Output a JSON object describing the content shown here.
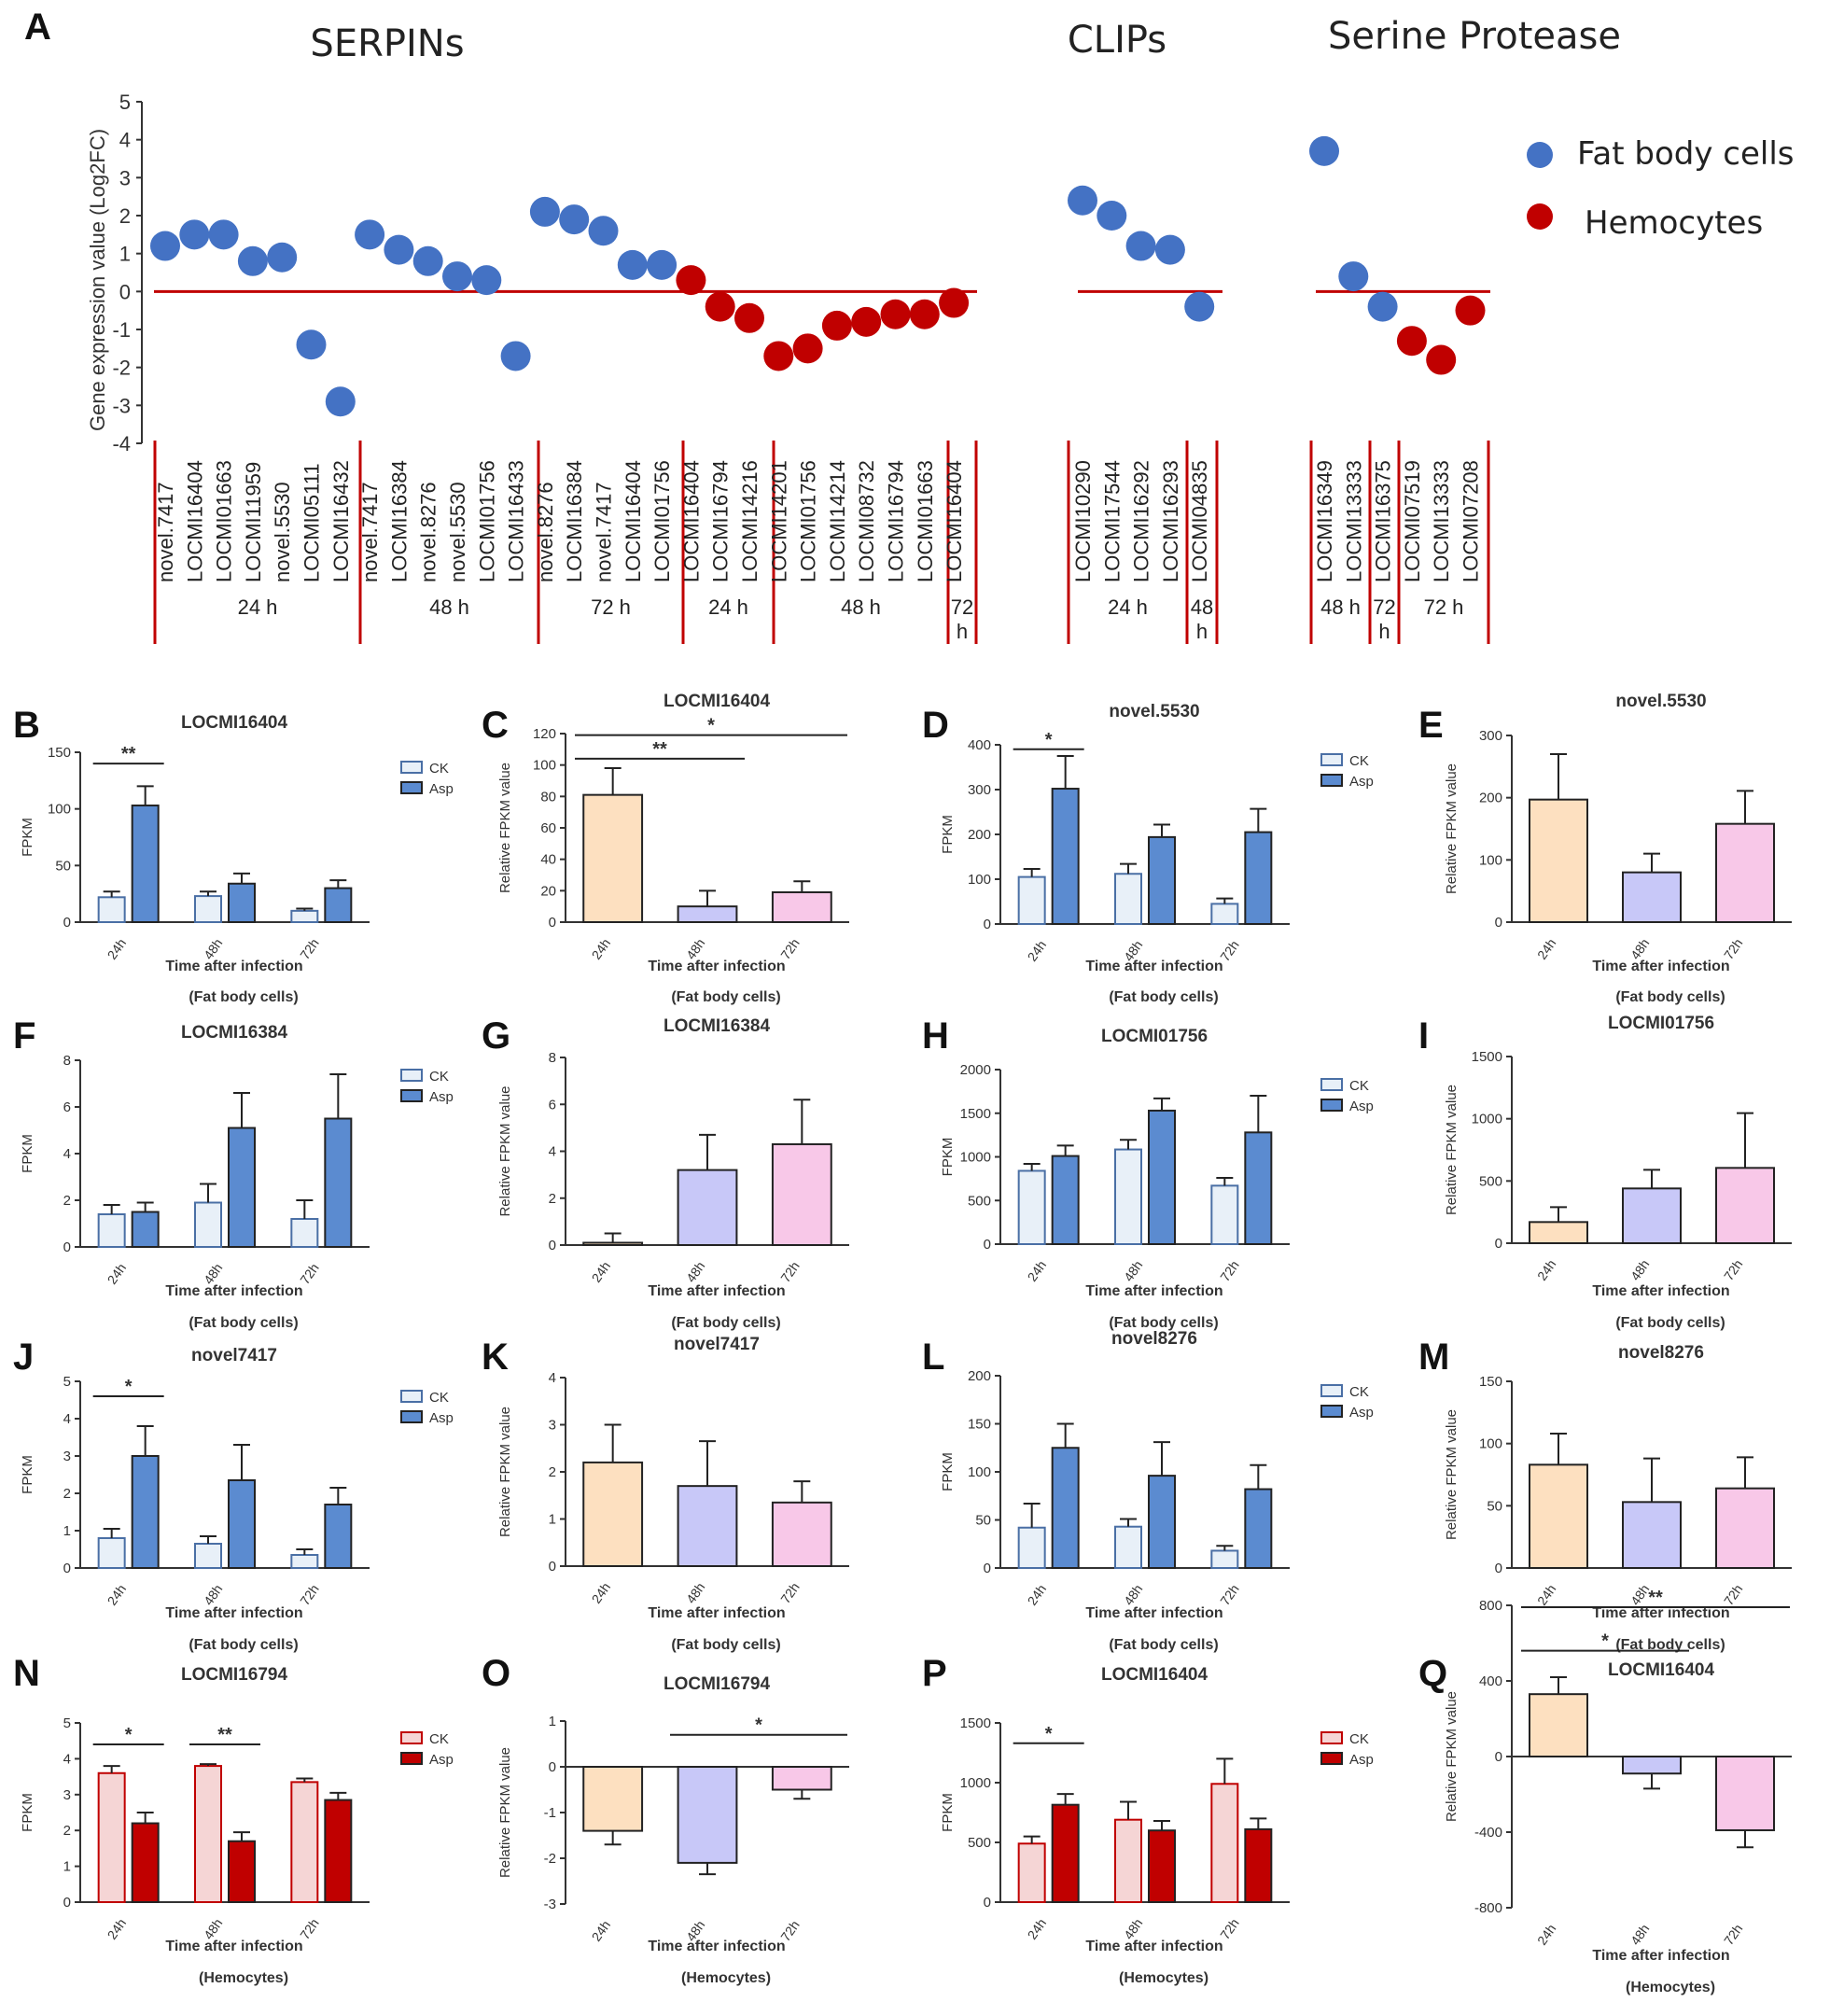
{
  "panel_a": {
    "label": "A",
    "section_titles": [
      "SERPINs",
      "CLIPs",
      "Serine Protease"
    ],
    "ylabel": "Gene expression value (Log2FC)",
    "ylim": [
      -4,
      5
    ],
    "yticks": [
      "5",
      "4",
      "3",
      "2",
      "1",
      "0",
      "-1",
      "-2",
      "-3",
      "-4"
    ],
    "legend": {
      "fat": {
        "label": "Fat body cells",
        "color": "#4472c4"
      },
      "hemo": {
        "label": "Hemocytes",
        "color": "#c00000"
      }
    },
    "groups": [
      {
        "label": "24 h",
        "genes": [
          "novel.7417",
          "LOCMI16404",
          "LOCMI01663",
          "LOCMI11959",
          "novel.5530",
          "LOCMI05111",
          "LOCMI16432"
        ],
        "values": [
          1.2,
          1.5,
          1.5,
          0.8,
          0.9,
          -1.4,
          -2.9
        ],
        "type": "fat"
      },
      {
        "label": "48 h",
        "genes": [
          "novel.7417",
          "LOCMI16384",
          "novel.8276",
          "novel.5530",
          "LOCMI01756",
          "LOCMI16433"
        ],
        "values": [
          1.5,
          1.1,
          0.8,
          0.4,
          0.3,
          -1.7
        ],
        "type": "fat"
      },
      {
        "label": "72 h",
        "genes": [
          "novel.8276",
          "LOCMI16384",
          "novel.7417",
          "LOCMI16404",
          "LOCMI01756"
        ],
        "values": [
          2.1,
          1.9,
          1.6,
          0.7,
          0.7
        ],
        "type": "fat"
      },
      {
        "label": "24 h",
        "genes": [
          "LOCMI16404",
          "LOCMI16794",
          "LOCMI14216"
        ],
        "values": [
          0.3,
          -0.4,
          -0.7
        ],
        "type": "hemo"
      },
      {
        "label": "48 h",
        "genes": [
          "LOCMI14201",
          "LOCMI01756",
          "LOCMI14214",
          "LOCMI08732",
          "LOCMI16794",
          "LOCMI01663"
        ],
        "values": [
          -1.7,
          -1.5,
          -0.9,
          -0.8,
          -0.6,
          -0.6
        ],
        "type": "hemo"
      },
      {
        "label": "72 h",
        "genes": [
          "LOCMI16404"
        ],
        "values": [
          -0.3
        ],
        "type": "hemo"
      },
      {
        "label": "24 h",
        "genes": [
          "LOCMI10290",
          "LOCMI17544",
          "LOCMI16292",
          "LOCMI16293"
        ],
        "values": [
          2.4,
          2.0,
          1.2,
          1.1
        ],
        "type": "fat"
      },
      {
        "label": "48 h",
        "genes": [
          "LOCMI04835"
        ],
        "values": [
          -0.4
        ],
        "type": "fat"
      },
      {
        "label": "48 h",
        "genes": [
          "LOCMI16349",
          "LOCMI13333"
        ],
        "values": [
          3.7,
          0.4
        ],
        "type": "fat"
      },
      {
        "label": "72 h",
        "genes": [
          "LOCMI16375"
        ],
        "values": [
          -0.4
        ],
        "type": "fat"
      },
      {
        "label": "72 h",
        "genes": [
          "LOCMI07519",
          "LOCMI13333",
          "LOCMI07208"
        ],
        "values": [
          -1.3,
          -1.8,
          -0.5
        ],
        "type": "hemo"
      }
    ]
  },
  "colors": {
    "ck_fill": "#e8f0f8",
    "ck_stroke": "#4a6fa5",
    "asp_fat": "#5b8bd0",
    "ck_hemo_fill": "#f5d5d5",
    "asp_hemo": "#c00000",
    "rel_24": "#fde0c0",
    "rel_48": "#c8c8f8",
    "rel_72": "#f8c8e8",
    "zero_line": "#c00000"
  },
  "common": {
    "time_label": "Time after infection",
    "fat_caption": "(Fat body cells)",
    "hemo_caption": "(Hemocytes)",
    "categories": [
      "24h",
      "48h",
      "72h"
    ],
    "fpkm_label": "FPKM",
    "rel_label": "Relative FPKM value",
    "legend_ck": "CK",
    "legend_asp": "Asp"
  },
  "chart_data": [
    {
      "label": "B",
      "title": "LOCMI16404",
      "type": "bar",
      "kind": "grouped",
      "cell": "fat",
      "ylim": [
        0,
        150
      ],
      "yticks": [
        0,
        50,
        100,
        150
      ],
      "categories": [
        "24h",
        "48h",
        "72h"
      ],
      "series": [
        {
          "name": "CK",
          "values": [
            22,
            23,
            10
          ],
          "err": [
            5,
            4,
            2
          ]
        },
        {
          "name": "Asp",
          "values": [
            103,
            34,
            30
          ],
          "err": [
            17,
            9,
            7
          ]
        }
      ],
      "sig": [
        {
          "from": 0,
          "to": 0,
          "text": "**",
          "y": 140
        }
      ]
    },
    {
      "label": "C",
      "title": "LOCMI16404",
      "type": "bar",
      "kind": "relative",
      "cell": "fat",
      "ylim": [
        0,
        120
      ],
      "yticks": [
        0,
        20,
        40,
        60,
        80,
        100,
        120
      ],
      "categories": [
        "24h",
        "48h",
        "72h"
      ],
      "values": [
        81,
        10,
        19
      ],
      "err": [
        17,
        10,
        7
      ],
      "sig": [
        {
          "from": 0,
          "to": 1,
          "text": "**",
          "y": 104
        },
        {
          "from": 0,
          "to": 2,
          "text": "*",
          "y": 119
        }
      ]
    },
    {
      "label": "D",
      "title": "novel.5530",
      "type": "bar",
      "kind": "grouped",
      "cell": "fat",
      "ylim": [
        0,
        400
      ],
      "yticks": [
        0,
        100,
        200,
        300,
        400
      ],
      "categories": [
        "24h",
        "48h",
        "72h"
      ],
      "series": [
        {
          "name": "CK",
          "values": [
            105,
            112,
            45
          ],
          "err": [
            18,
            22,
            12
          ]
        },
        {
          "name": "Asp",
          "values": [
            302,
            194,
            205
          ],
          "err": [
            73,
            28,
            52
          ]
        }
      ],
      "sig": [
        {
          "from": 0,
          "to": 0,
          "text": "*",
          "y": 390
        }
      ]
    },
    {
      "label": "E",
      "title": "novel.5530",
      "type": "bar",
      "kind": "relative",
      "cell": "fat",
      "ylim": [
        0,
        300
      ],
      "yticks": [
        0,
        100,
        200,
        300
      ],
      "categories": [
        "24h",
        "48h",
        "72h"
      ],
      "values": [
        197,
        80,
        158
      ],
      "err": [
        73,
        30,
        53
      ],
      "sig": []
    },
    {
      "label": "F",
      "title": "LOCMI16384",
      "type": "bar",
      "kind": "grouped",
      "cell": "fat",
      "ylim": [
        0,
        8
      ],
      "yticks": [
        0,
        2,
        4,
        6,
        8
      ],
      "categories": [
        "24h",
        "48h",
        "72h"
      ],
      "series": [
        {
          "name": "CK",
          "values": [
            1.4,
            1.9,
            1.2
          ],
          "err": [
            0.4,
            0.8,
            0.8
          ]
        },
        {
          "name": "Asp",
          "values": [
            1.5,
            5.1,
            5.5
          ],
          "err": [
            0.4,
            1.5,
            1.9
          ]
        }
      ],
      "sig": []
    },
    {
      "label": "G",
      "title": "LOCMI16384",
      "type": "bar",
      "kind": "relative",
      "cell": "fat",
      "ylim": [
        0,
        8
      ],
      "yticks": [
        0,
        2,
        4,
        6,
        8
      ],
      "categories": [
        "24h",
        "48h",
        "72h"
      ],
      "values": [
        0.1,
        3.2,
        4.3
      ],
      "err": [
        0.4,
        1.5,
        1.9
      ],
      "sig": []
    },
    {
      "label": "H",
      "title": "LOCMI01756",
      "type": "bar",
      "kind": "grouped",
      "cell": "fat",
      "ylim": [
        0,
        2000
      ],
      "yticks": [
        0,
        500,
        1000,
        1500,
        2000
      ],
      "categories": [
        "24h",
        "48h",
        "72h"
      ],
      "series": [
        {
          "name": "CK",
          "values": [
            840,
            1085,
            670
          ],
          "err": [
            80,
            110,
            90
          ]
        },
        {
          "name": "Asp",
          "values": [
            1010,
            1530,
            1280
          ],
          "err": [
            120,
            140,
            420
          ]
        }
      ],
      "sig": []
    },
    {
      "label": "I",
      "title": "LOCMI01756",
      "type": "bar",
      "kind": "relative",
      "cell": "fat",
      "ylim": [
        0,
        1500
      ],
      "yticks": [
        0,
        500,
        1000,
        1500
      ],
      "categories": [
        "24h",
        "48h",
        "72h"
      ],
      "values": [
        170,
        440,
        605
      ],
      "err": [
        120,
        150,
        440
      ],
      "sig": []
    },
    {
      "label": "J",
      "title": "novel7417",
      "type": "bar",
      "kind": "grouped",
      "cell": "fat",
      "ylim": [
        0,
        5
      ],
      "yticks": [
        0,
        1,
        2,
        3,
        4,
        5
      ],
      "categories": [
        "24h",
        "48h",
        "72h"
      ],
      "series": [
        {
          "name": "CK",
          "values": [
            0.8,
            0.65,
            0.35
          ],
          "err": [
            0.25,
            0.2,
            0.15
          ]
        },
        {
          "name": "Asp",
          "values": [
            3.0,
            2.35,
            1.7
          ],
          "err": [
            0.8,
            0.95,
            0.45
          ]
        }
      ],
      "sig": [
        {
          "from": 0,
          "to": 0,
          "text": "*",
          "y": 4.6
        }
      ]
    },
    {
      "label": "K",
      "title": "novel7417",
      "type": "bar",
      "kind": "relative",
      "cell": "fat",
      "ylim": [
        0,
        4
      ],
      "yticks": [
        0,
        1,
        2,
        3,
        4
      ],
      "categories": [
        "24h",
        "48h",
        "72h"
      ],
      "values": [
        2.2,
        1.7,
        1.35
      ],
      "err": [
        0.8,
        0.95,
        0.45
      ],
      "sig": []
    },
    {
      "label": "L",
      "title": "novel8276",
      "type": "bar",
      "kind": "grouped",
      "cell": "fat",
      "ylim": [
        0,
        200
      ],
      "yticks": [
        0,
        50,
        100,
        150,
        200
      ],
      "categories": [
        "24h",
        "48h",
        "72h"
      ],
      "series": [
        {
          "name": "CK",
          "values": [
            42,
            43,
            18
          ],
          "err": [
            25,
            8,
            5
          ]
        },
        {
          "name": "Asp",
          "values": [
            125,
            96,
            82
          ],
          "err": [
            25,
            35,
            25
          ]
        }
      ],
      "sig": []
    },
    {
      "label": "M",
      "title": "novel8276",
      "type": "bar",
      "kind": "relative",
      "cell": "fat",
      "ylim": [
        0,
        150
      ],
      "yticks": [
        0,
        50,
        100,
        150
      ],
      "categories": [
        "24h",
        "48h",
        "72h"
      ],
      "values": [
        83,
        53,
        64
      ],
      "err": [
        25,
        35,
        25
      ],
      "sig": []
    },
    {
      "label": "N",
      "title": "LOCMI16794",
      "type": "bar",
      "kind": "grouped",
      "cell": "hemo",
      "ylim": [
        0,
        5
      ],
      "yticks": [
        0,
        1,
        2,
        3,
        4,
        5
      ],
      "categories": [
        "24h",
        "48h",
        "72h"
      ],
      "series": [
        {
          "name": "CK",
          "values": [
            3.6,
            3.8,
            3.35
          ],
          "err": [
            0.2,
            0.05,
            0.1
          ]
        },
        {
          "name": "Asp",
          "values": [
            2.2,
            1.7,
            2.85
          ],
          "err": [
            0.3,
            0.25,
            0.2
          ]
        }
      ],
      "sig": [
        {
          "from": 0,
          "to": 0,
          "text": "*",
          "y": 4.4
        },
        {
          "from": 1,
          "to": 1,
          "text": "**",
          "y": 4.4
        }
      ]
    },
    {
      "label": "O",
      "title": "LOCMI16794",
      "type": "bar",
      "kind": "relative",
      "cell": "hemo",
      "ylim": [
        -3,
        1
      ],
      "yticks": [
        -3,
        -2,
        -1,
        0,
        1
      ],
      "categories": [
        "24h",
        "48h",
        "72h"
      ],
      "values": [
        -1.4,
        -2.1,
        -0.5
      ],
      "err": [
        0.3,
        0.25,
        0.2
      ],
      "sig": [
        {
          "from": 1,
          "to": 2,
          "text": "*",
          "y": 0.7
        }
      ]
    },
    {
      "label": "P",
      "title": "LOCMI16404",
      "type": "bar",
      "kind": "grouped",
      "cell": "hemo",
      "ylim": [
        0,
        1500
      ],
      "yticks": [
        0,
        500,
        1000,
        1500
      ],
      "categories": [
        "24h",
        "48h",
        "72h"
      ],
      "series": [
        {
          "name": "CK",
          "values": [
            490,
            690,
            990
          ],
          "err": [
            60,
            150,
            210
          ]
        },
        {
          "name": "Asp",
          "values": [
            815,
            600,
            610
          ],
          "err": [
            90,
            80,
            90
          ]
        }
      ],
      "sig": [
        {
          "from": 0,
          "to": 0,
          "text": "*",
          "y": 1330
        }
      ]
    },
    {
      "label": "Q",
      "title": "LOCMI16404",
      "type": "bar",
      "kind": "relative",
      "cell": "hemo",
      "ylim": [
        -800,
        800
      ],
      "yticks": [
        -800,
        -400,
        0,
        400,
        800
      ],
      "categories": [
        "24h",
        "48h",
        "72h"
      ],
      "values": [
        330,
        -90,
        -390
      ],
      "err": [
        90,
        80,
        90
      ],
      "sig": [
        {
          "from": 0,
          "to": 1,
          "text": "*",
          "y": 560
        },
        {
          "from": 0,
          "to": 2,
          "text": "**",
          "y": 790
        }
      ]
    }
  ]
}
